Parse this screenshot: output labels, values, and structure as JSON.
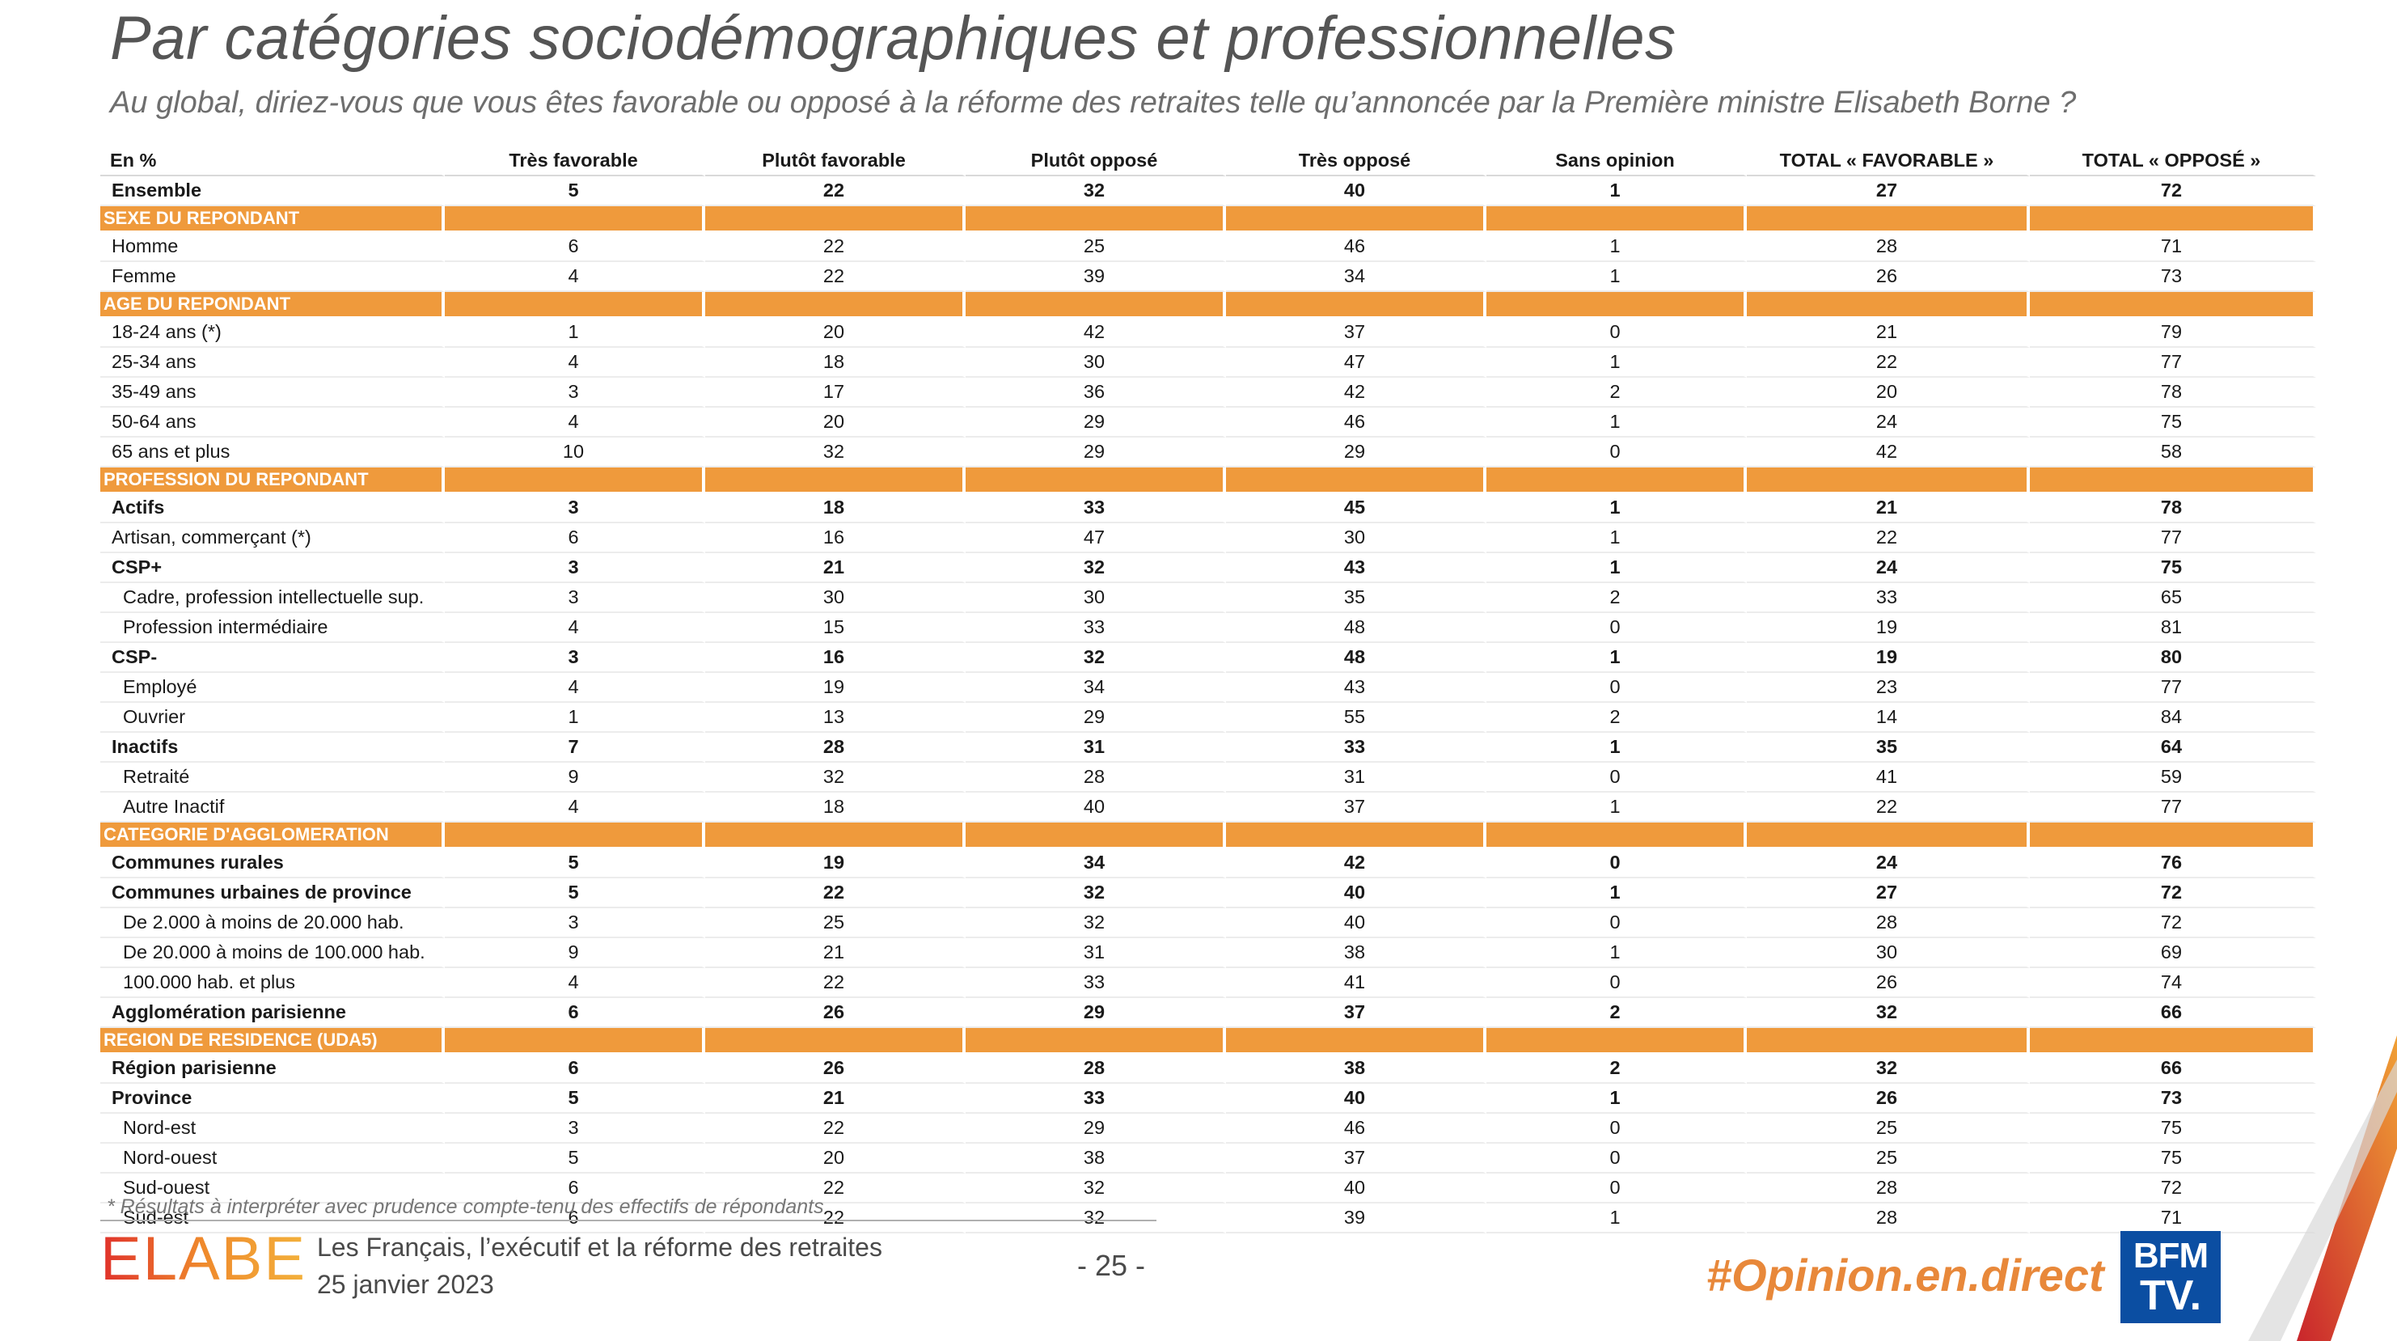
{
  "title": "Par catégories sociodémographiques et professionnelles",
  "subtitle": "Au global, diriez-vous que vous êtes favorable ou opposé à la réforme des retraites telle qu’annoncée par la Première ministre Elisabeth Borne ?",
  "table": {
    "headers": [
      "En %",
      "Très favorable",
      "Plutôt favorable",
      "Plutôt opposé",
      "Très opposé",
      "Sans opinion",
      "TOTAL « FAVORABLE »",
      "TOTAL « OPPOSÉ »"
    ],
    "rows": [
      {
        "type": "bold",
        "label": "Ensemble",
        "values": [
          "5",
          "22",
          "32",
          "40",
          "1",
          "27",
          "72"
        ]
      },
      {
        "type": "section",
        "label": "SEXE DU REPONDANT"
      },
      {
        "type": "row",
        "label": "Homme",
        "values": [
          "6",
          "22",
          "25",
          "46",
          "1",
          "28",
          "71"
        ]
      },
      {
        "type": "row",
        "label": "Femme",
        "values": [
          "4",
          "22",
          "39",
          "34",
          "1",
          "26",
          "73"
        ]
      },
      {
        "type": "section",
        "label": "AGE DU REPONDANT"
      },
      {
        "type": "row",
        "label": "18-24 ans (*)",
        "values": [
          "1",
          "20",
          "42",
          "37",
          "0",
          "21",
          "79"
        ]
      },
      {
        "type": "row",
        "label": "25-34 ans",
        "values": [
          "4",
          "18",
          "30",
          "47",
          "1",
          "22",
          "77"
        ]
      },
      {
        "type": "row",
        "label": "35-49 ans",
        "values": [
          "3",
          "17",
          "36",
          "42",
          "2",
          "20",
          "78"
        ]
      },
      {
        "type": "row",
        "label": "50-64 ans",
        "values": [
          "4",
          "20",
          "29",
          "46",
          "1",
          "24",
          "75"
        ]
      },
      {
        "type": "row",
        "label": "65 ans et plus",
        "values": [
          "10",
          "32",
          "29",
          "29",
          "0",
          "42",
          "58"
        ]
      },
      {
        "type": "section",
        "label": "PROFESSION DU REPONDANT"
      },
      {
        "type": "bold",
        "label": "Actifs",
        "values": [
          "3",
          "18",
          "33",
          "45",
          "1",
          "21",
          "78"
        ]
      },
      {
        "type": "row",
        "label": "Artisan, commerçant (*)",
        "values": [
          "6",
          "16",
          "47",
          "30",
          "1",
          "22",
          "77"
        ]
      },
      {
        "type": "bold",
        "label": "CSP+",
        "values": [
          "3",
          "21",
          "32",
          "43",
          "1",
          "24",
          "75"
        ]
      },
      {
        "type": "indent",
        "label": "Cadre, profession intellectuelle sup.",
        "values": [
          "3",
          "30",
          "30",
          "35",
          "2",
          "33",
          "65"
        ]
      },
      {
        "type": "indent",
        "label": "Profession intermédiaire",
        "values": [
          "4",
          "15",
          "33",
          "48",
          "0",
          "19",
          "81"
        ]
      },
      {
        "type": "bold",
        "label": "CSP-",
        "values": [
          "3",
          "16",
          "32",
          "48",
          "1",
          "19",
          "80"
        ]
      },
      {
        "type": "indent",
        "label": "Employé",
        "values": [
          "4",
          "19",
          "34",
          "43",
          "0",
          "23",
          "77"
        ]
      },
      {
        "type": "indent",
        "label": "Ouvrier",
        "values": [
          "1",
          "13",
          "29",
          "55",
          "2",
          "14",
          "84"
        ]
      },
      {
        "type": "bold",
        "label": "Inactifs",
        "values": [
          "7",
          "28",
          "31",
          "33",
          "1",
          "35",
          "64"
        ]
      },
      {
        "type": "indent",
        "label": "Retraité",
        "values": [
          "9",
          "32",
          "28",
          "31",
          "0",
          "41",
          "59"
        ]
      },
      {
        "type": "indent",
        "label": "Autre Inactif",
        "values": [
          "4",
          "18",
          "40",
          "37",
          "1",
          "22",
          "77"
        ]
      },
      {
        "type": "section",
        "label": "CATEGORIE D'AGGLOMERATION"
      },
      {
        "type": "bold",
        "label": "Communes rurales",
        "values": [
          "5",
          "19",
          "34",
          "42",
          "0",
          "24",
          "76"
        ]
      },
      {
        "type": "bold",
        "label": "Communes urbaines de province",
        "values": [
          "5",
          "22",
          "32",
          "40",
          "1",
          "27",
          "72"
        ]
      },
      {
        "type": "indent",
        "label": "De 2.000 à moins de 20.000 hab.",
        "values": [
          "3",
          "25",
          "32",
          "40",
          "0",
          "28",
          "72"
        ]
      },
      {
        "type": "indent",
        "label": "De 20.000 à moins de 100.000 hab.",
        "values": [
          "9",
          "21",
          "31",
          "38",
          "1",
          "30",
          "69"
        ]
      },
      {
        "type": "indent",
        "label": "100.000 hab. et plus",
        "values": [
          "4",
          "22",
          "33",
          "41",
          "0",
          "26",
          "74"
        ]
      },
      {
        "type": "bold",
        "label": "Agglomération parisienne",
        "values": [
          "6",
          "26",
          "29",
          "37",
          "2",
          "32",
          "66"
        ]
      },
      {
        "type": "section",
        "label": "REGION DE RESIDENCE (UDA5)"
      },
      {
        "type": "bold",
        "label": "Région parisienne",
        "values": [
          "6",
          "26",
          "28",
          "38",
          "2",
          "32",
          "66"
        ]
      },
      {
        "type": "bold",
        "label": "Province",
        "values": [
          "5",
          "21",
          "33",
          "40",
          "1",
          "26",
          "73"
        ]
      },
      {
        "type": "indent",
        "label": "Nord-est",
        "values": [
          "3",
          "22",
          "29",
          "46",
          "0",
          "25",
          "75"
        ]
      },
      {
        "type": "indent",
        "label": "Nord-ouest",
        "values": [
          "5",
          "20",
          "38",
          "37",
          "0",
          "25",
          "75"
        ]
      },
      {
        "type": "indent",
        "label": "Sud-ouest",
        "values": [
          "6",
          "22",
          "32",
          "40",
          "0",
          "28",
          "72"
        ]
      },
      {
        "type": "indent",
        "label": "Sud-est",
        "values": [
          "6",
          "22",
          "32",
          "39",
          "1",
          "28",
          "71"
        ]
      }
    ]
  },
  "footnote": "* Résultats à interpréter avec prudence compte-tenu des effectifs de répondants",
  "footer": {
    "logo_text": "ELABE",
    "study_title": "Les Français, l’exécutif et la réforme des retraites",
    "study_date": "25 janvier 2023",
    "page_number": "- 25 -",
    "hashtag": "#Opinion.en.direct",
    "broadcaster_line1": "BFM",
    "broadcaster_line2": "TV."
  },
  "colors": {
    "section_orange": "#ef9a3c",
    "hashtag_orange": "#e8883a",
    "bfm_blue": "#0b4ea2"
  }
}
